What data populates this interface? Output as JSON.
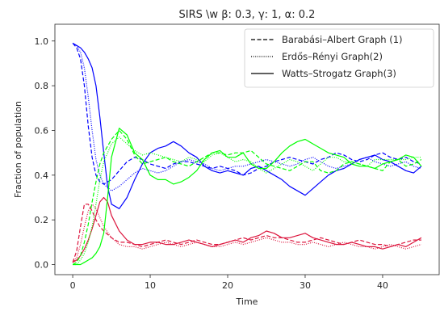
{
  "chart_data": {
    "type": "line",
    "title": "SIRS \\w β: 0.3, γ: 1, α: 0.2",
    "xlabel": "Time",
    "ylabel": "Fraction of population",
    "xlim": [
      -2.3,
      47.3
    ],
    "ylim": [
      -0.045,
      1.075
    ],
    "xticks": [
      0,
      10,
      20,
      30,
      40
    ],
    "yticks": [
      0.0,
      0.2,
      0.4,
      0.6,
      0.8,
      1.0
    ],
    "yticklabels": [
      "0.0",
      "0.2",
      "0.4",
      "0.6",
      "0.8",
      "1.0"
    ],
    "grid": false,
    "legend_position": "upper right",
    "legend": [
      {
        "label": "Barabási–Albert Graph (1)",
        "style": "dashed"
      },
      {
        "label": "Erdős–Rényi Graph(2)",
        "style": "dotted"
      },
      {
        "label": "Watts–Strogatz Graph(3)",
        "style": "solid"
      }
    ],
    "colors": {
      "susceptible": "#0000ff",
      "infected": "#dc143c",
      "recovered": "#00ff00"
    },
    "series": [
      {
        "compartment": "susceptible",
        "graph": 1,
        "style": "dashed",
        "x": [
          0,
          0.5,
          1,
          1.5,
          2,
          2.5,
          3,
          3.5,
          4,
          5,
          6,
          7,
          8,
          9,
          10,
          11,
          12,
          13,
          14,
          15,
          16,
          17,
          18,
          19,
          20,
          21,
          22,
          23,
          24,
          25,
          26,
          27,
          28,
          29,
          30,
          31,
          32,
          33,
          34,
          35,
          36,
          37,
          38,
          39,
          40,
          41,
          42,
          43,
          44,
          45
        ],
        "y": [
          0.99,
          0.97,
          0.92,
          0.8,
          0.62,
          0.48,
          0.4,
          0.37,
          0.36,
          0.38,
          0.42,
          0.46,
          0.48,
          0.47,
          0.45,
          0.44,
          0.43,
          0.45,
          0.46,
          0.46,
          0.45,
          0.44,
          0.43,
          0.44,
          0.43,
          0.42,
          0.4,
          0.41,
          0.43,
          0.44,
          0.46,
          0.47,
          0.48,
          0.47,
          0.46,
          0.45,
          0.47,
          0.48,
          0.5,
          0.49,
          0.47,
          0.46,
          0.47,
          0.49,
          0.5,
          0.48,
          0.47,
          0.48,
          0.46,
          0.45
        ]
      },
      {
        "compartment": "susceptible",
        "graph": 2,
        "style": "dotted",
        "x": [
          0,
          0.5,
          1,
          1.5,
          2,
          2.5,
          3,
          3.5,
          4,
          5,
          6,
          7,
          8,
          9,
          10,
          11,
          12,
          13,
          14,
          15,
          16,
          17,
          18,
          19,
          20,
          21,
          22,
          23,
          24,
          25,
          26,
          27,
          28,
          29,
          30,
          31,
          32,
          33,
          34,
          35,
          36,
          37,
          38,
          39,
          40,
          41,
          42,
          43,
          44,
          45
        ],
        "y": [
          0.99,
          0.98,
          0.95,
          0.88,
          0.75,
          0.6,
          0.47,
          0.4,
          0.36,
          0.33,
          0.35,
          0.38,
          0.41,
          0.43,
          0.42,
          0.41,
          0.42,
          0.44,
          0.46,
          0.47,
          0.46,
          0.45,
          0.43,
          0.42,
          0.43,
          0.44,
          0.44,
          0.45,
          0.46,
          0.47,
          0.46,
          0.45,
          0.44,
          0.45,
          0.47,
          0.48,
          0.46,
          0.44,
          0.43,
          0.44,
          0.45,
          0.47,
          0.48,
          0.46,
          0.45,
          0.44,
          0.45,
          0.46,
          0.44,
          0.43
        ]
      },
      {
        "compartment": "susceptible",
        "graph": 3,
        "style": "solid",
        "x": [
          0,
          0.5,
          1,
          1.5,
          2,
          2.5,
          3,
          3.5,
          4,
          4.5,
          5,
          6,
          7,
          8,
          9,
          10,
          11,
          12,
          13,
          14,
          15,
          16,
          17,
          18,
          19,
          20,
          21,
          22,
          23,
          24,
          25,
          26,
          27,
          28,
          29,
          30,
          31,
          32,
          33,
          34,
          35,
          36,
          37,
          38,
          39,
          40,
          41,
          42,
          43,
          44,
          45
        ],
        "y": [
          0.99,
          0.98,
          0.97,
          0.95,
          0.92,
          0.88,
          0.8,
          0.66,
          0.5,
          0.35,
          0.27,
          0.25,
          0.3,
          0.38,
          0.45,
          0.5,
          0.52,
          0.53,
          0.55,
          0.53,
          0.5,
          0.48,
          0.44,
          0.42,
          0.41,
          0.42,
          0.41,
          0.4,
          0.43,
          0.44,
          0.42,
          0.4,
          0.38,
          0.35,
          0.33,
          0.31,
          0.34,
          0.37,
          0.4,
          0.42,
          0.43,
          0.45,
          0.47,
          0.48,
          0.49,
          0.47,
          0.46,
          0.44,
          0.42,
          0.41,
          0.44
        ]
      },
      {
        "compartment": "infected",
        "graph": 1,
        "style": "dashed",
        "x": [
          0,
          0.5,
          1,
          1.5,
          2,
          2.5,
          3,
          3.5,
          4,
          5,
          6,
          7,
          8,
          9,
          10,
          11,
          12,
          13,
          14,
          15,
          16,
          17,
          18,
          19,
          20,
          21,
          22,
          23,
          24,
          25,
          26,
          27,
          28,
          29,
          30,
          31,
          32,
          33,
          34,
          35,
          36,
          37,
          38,
          39,
          40,
          41,
          42,
          43,
          44,
          45
        ],
        "y": [
          0.01,
          0.06,
          0.17,
          0.27,
          0.27,
          0.24,
          0.2,
          0.17,
          0.15,
          0.12,
          0.1,
          0.1,
          0.09,
          0.08,
          0.09,
          0.1,
          0.11,
          0.1,
          0.09,
          0.1,
          0.11,
          0.1,
          0.09,
          0.09,
          0.1,
          0.11,
          0.12,
          0.11,
          0.12,
          0.13,
          0.12,
          0.12,
          0.11,
          0.1,
          0.1,
          0.11,
          0.12,
          0.11,
          0.1,
          0.09,
          0.1,
          0.11,
          0.1,
          0.09,
          0.09,
          0.08,
          0.09,
          0.1,
          0.11,
          0.11
        ]
      },
      {
        "compartment": "infected",
        "graph": 2,
        "style": "dotted",
        "x": [
          0,
          0.5,
          1,
          1.5,
          2,
          2.5,
          3,
          3.5,
          4,
          5,
          6,
          7,
          8,
          9,
          10,
          11,
          12,
          13,
          14,
          15,
          16,
          17,
          18,
          19,
          20,
          21,
          22,
          23,
          24,
          25,
          26,
          27,
          28,
          29,
          30,
          31,
          32,
          33,
          34,
          35,
          36,
          37,
          38,
          39,
          40,
          41,
          42,
          43,
          44,
          45
        ],
        "y": [
          0.01,
          0.03,
          0.09,
          0.17,
          0.24,
          0.27,
          0.25,
          0.21,
          0.17,
          0.12,
          0.09,
          0.08,
          0.08,
          0.07,
          0.08,
          0.09,
          0.1,
          0.09,
          0.08,
          0.09,
          0.1,
          0.09,
          0.08,
          0.08,
          0.09,
          0.1,
          0.09,
          0.1,
          0.11,
          0.12,
          0.11,
          0.1,
          0.1,
          0.09,
          0.09,
          0.1,
          0.09,
          0.08,
          0.09,
          0.1,
          0.09,
          0.08,
          0.08,
          0.07,
          0.08,
          0.09,
          0.08,
          0.07,
          0.08,
          0.09
        ]
      },
      {
        "compartment": "infected",
        "graph": 3,
        "style": "solid",
        "x": [
          0,
          0.5,
          1,
          1.5,
          2,
          2.5,
          3,
          3.5,
          4,
          4.5,
          5,
          6,
          7,
          8,
          9,
          10,
          11,
          12,
          13,
          14,
          15,
          16,
          17,
          18,
          19,
          20,
          21,
          22,
          23,
          24,
          25,
          26,
          27,
          28,
          29,
          30,
          31,
          32,
          33,
          34,
          35,
          36,
          37,
          38,
          39,
          40,
          41,
          42,
          43,
          44,
          45
        ],
        "y": [
          0.01,
          0.02,
          0.04,
          0.07,
          0.11,
          0.16,
          0.22,
          0.28,
          0.3,
          0.28,
          0.22,
          0.15,
          0.11,
          0.09,
          0.09,
          0.1,
          0.1,
          0.09,
          0.09,
          0.1,
          0.11,
          0.1,
          0.09,
          0.08,
          0.09,
          0.1,
          0.11,
          0.1,
          0.12,
          0.13,
          0.15,
          0.14,
          0.12,
          0.12,
          0.13,
          0.14,
          0.12,
          0.11,
          0.1,
          0.09,
          0.09,
          0.1,
          0.09,
          0.08,
          0.08,
          0.07,
          0.08,
          0.09,
          0.08,
          0.1,
          0.12
        ]
      },
      {
        "compartment": "recovered",
        "graph": 1,
        "style": "dashed",
        "x": [
          0,
          0.5,
          1,
          1.5,
          2,
          2.5,
          3,
          3.5,
          4,
          5,
          6,
          7,
          8,
          9,
          10,
          11,
          12,
          13,
          14,
          15,
          16,
          17,
          18,
          19,
          20,
          21,
          22,
          23,
          24,
          25,
          26,
          27,
          28,
          29,
          30,
          31,
          32,
          33,
          34,
          35,
          36,
          37,
          38,
          39,
          40,
          41,
          42,
          43,
          44,
          45
        ],
        "y": [
          0.0,
          0.01,
          0.04,
          0.1,
          0.18,
          0.28,
          0.37,
          0.45,
          0.5,
          0.56,
          0.6,
          0.56,
          0.49,
          0.45,
          0.46,
          0.47,
          0.48,
          0.46,
          0.45,
          0.44,
          0.46,
          0.48,
          0.5,
          0.5,
          0.49,
          0.5,
          0.5,
          0.51,
          0.48,
          0.45,
          0.44,
          0.43,
          0.42,
          0.44,
          0.46,
          0.46,
          0.42,
          0.41,
          0.42,
          0.45,
          0.46,
          0.45,
          0.44,
          0.43,
          0.42,
          0.46,
          0.47,
          0.44,
          0.45,
          0.47
        ]
      },
      {
        "compartment": "recovered",
        "graph": 2,
        "style": "dotted",
        "x": [
          0,
          0.5,
          1,
          1.5,
          2,
          2.5,
          3,
          3.5,
          4,
          5,
          6,
          7,
          8,
          9,
          10,
          11,
          12,
          13,
          14,
          15,
          16,
          17,
          18,
          19,
          20,
          21,
          22,
          23,
          24,
          25,
          26,
          27,
          28,
          29,
          30,
          31,
          32,
          33,
          34,
          35,
          36,
          37,
          38,
          39,
          40,
          41,
          42,
          43,
          44,
          45
        ],
        "y": [
          0.0,
          0.0,
          0.02,
          0.05,
          0.1,
          0.17,
          0.27,
          0.38,
          0.46,
          0.54,
          0.57,
          0.54,
          0.51,
          0.49,
          0.5,
          0.49,
          0.48,
          0.47,
          0.46,
          0.48,
          0.47,
          0.46,
          0.49,
          0.5,
          0.48,
          0.46,
          0.47,
          0.46,
          0.43,
          0.41,
          0.43,
          0.45,
          0.47,
          0.46,
          0.44,
          0.42,
          0.45,
          0.48,
          0.48,
          0.46,
          0.46,
          0.45,
          0.44,
          0.47,
          0.47,
          0.47,
          0.47,
          0.47,
          0.48,
          0.48
        ]
      },
      {
        "compartment": "recovered",
        "graph": 3,
        "style": "solid",
        "x": [
          0,
          0.5,
          1,
          1.5,
          2,
          2.5,
          3,
          3.5,
          4,
          4.5,
          5,
          6,
          7,
          8,
          9,
          10,
          11,
          12,
          13,
          14,
          15,
          16,
          17,
          18,
          19,
          20,
          21,
          22,
          23,
          24,
          25,
          26,
          27,
          28,
          29,
          30,
          31,
          32,
          33,
          34,
          35,
          36,
          37,
          38,
          39,
          40,
          41,
          42,
          43,
          44,
          45
        ],
        "y": [
          0.0,
          0.0,
          0.0,
          0.01,
          0.02,
          0.03,
          0.05,
          0.08,
          0.14,
          0.3,
          0.48,
          0.61,
          0.58,
          0.5,
          0.47,
          0.4,
          0.38,
          0.38,
          0.36,
          0.37,
          0.39,
          0.42,
          0.47,
          0.5,
          0.51,
          0.48,
          0.48,
          0.5,
          0.45,
          0.43,
          0.43,
          0.46,
          0.5,
          0.53,
          0.55,
          0.56,
          0.54,
          0.52,
          0.5,
          0.49,
          0.48,
          0.45,
          0.44,
          0.44,
          0.43,
          0.45,
          0.46,
          0.47,
          0.49,
          0.48,
          0.44
        ]
      }
    ]
  }
}
